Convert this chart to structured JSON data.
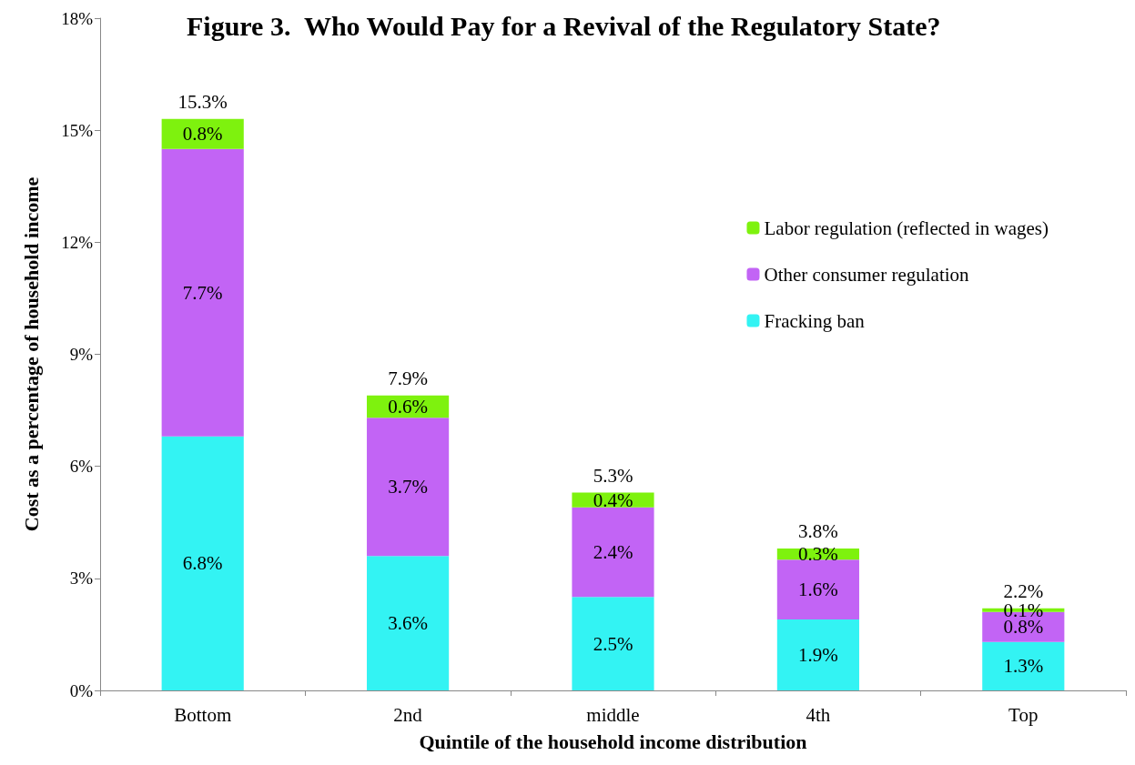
{
  "chart_data": {
    "type": "bar",
    "stacked": true,
    "title": "Figure 3.  Who Would Pay for a Revival of the Regulatory State?",
    "xlabel": "Quintile of the household income distribution",
    "ylabel": "Cost as a percentage of household income",
    "categories": [
      "Bottom",
      "2nd",
      "middle",
      "4th",
      "Top"
    ],
    "series": [
      {
        "name": "Fracking ban",
        "color": "#33f3f3",
        "values": [
          6.8,
          3.6,
          2.5,
          1.9,
          1.3
        ],
        "value_labels": [
          "6.8%",
          "3.6%",
          "2.5%",
          "1.9%",
          "1.3%"
        ]
      },
      {
        "name": "Other consumer regulation",
        "color": "#c264f5",
        "values": [
          7.7,
          3.7,
          2.4,
          1.6,
          0.8
        ],
        "value_labels": [
          "7.7%",
          "3.7%",
          "2.4%",
          "1.6%",
          "0.8%"
        ]
      },
      {
        "name": "Labor regulation (reflected in wages)",
        "color": "#7ef20e",
        "values": [
          0.8,
          0.6,
          0.4,
          0.3,
          0.1
        ],
        "value_labels": [
          "0.8%",
          "0.6%",
          "0.4%",
          "0.3%",
          "0.1%"
        ]
      }
    ],
    "totals": [
      "15.3%",
      "7.9%",
      "5.3%",
      "3.8%",
      "2.2%"
    ],
    "ylim": [
      0,
      18
    ],
    "yticks": [
      {
        "value": 0,
        "label": "0%"
      },
      {
        "value": 3,
        "label": "3%"
      },
      {
        "value": 6,
        "label": "6%"
      },
      {
        "value": 9,
        "label": "9%"
      },
      {
        "value": 12,
        "label": "12%"
      },
      {
        "value": 15,
        "label": "15%"
      },
      {
        "value": 18,
        "label": "18%"
      }
    ],
    "grid": false,
    "legend": "top right"
  }
}
